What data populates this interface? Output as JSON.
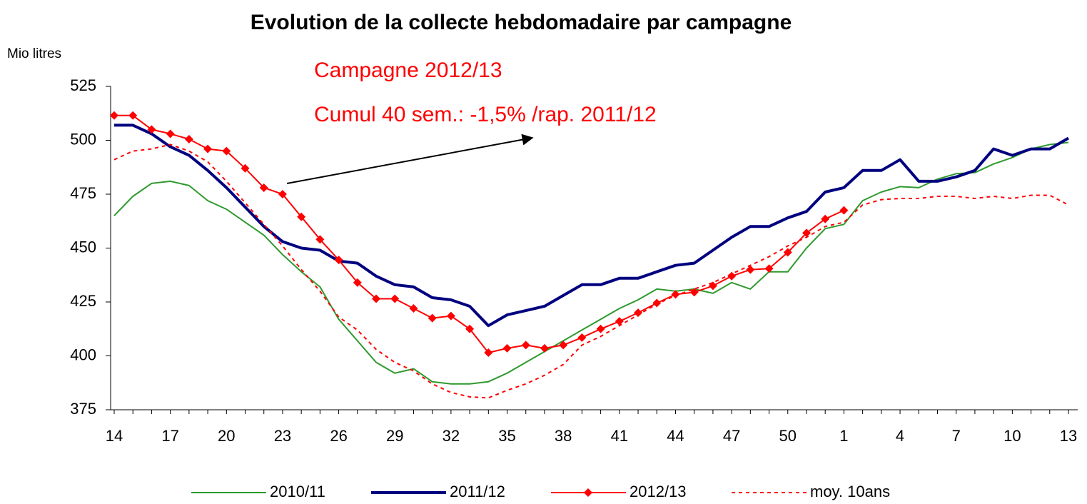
{
  "chart_data": {
    "type": "line",
    "title": "Evolution de la collecte hebdomadaire par campagne",
    "y_axis_label": "Mio litres",
    "annotations": [
      "Campagne 2012/13",
      "Cumul 40 sem.: -1,5% /rap. 2011/12"
    ],
    "categories": [
      14,
      null,
      null,
      17,
      null,
      null,
      20,
      null,
      null,
      23,
      null,
      null,
      26,
      null,
      null,
      29,
      null,
      null,
      32,
      null,
      null,
      35,
      null,
      null,
      38,
      null,
      null,
      41,
      null,
      null,
      44,
      null,
      null,
      47,
      null,
      null,
      50,
      null,
      null,
      1,
      null,
      null,
      4,
      null,
      null,
      7,
      null,
      null,
      10,
      null,
      null,
      13
    ],
    "ylim": [
      375,
      525
    ],
    "yticks": [
      375,
      400,
      425,
      450,
      475,
      500,
      525
    ],
    "legend": "bottom",
    "series": [
      {
        "name": "2010/11",
        "color": "#2e9a2e",
        "line_style": "solid",
        "linewidth": 2,
        "marker": "none",
        "values": [
          465,
          474,
          480,
          481,
          479,
          472,
          468,
          462,
          456,
          447,
          439,
          432,
          417,
          407,
          397,
          392,
          394,
          388,
          387,
          387,
          388,
          392,
          397,
          402,
          407,
          412,
          417,
          422,
          426,
          431,
          430,
          431,
          429,
          434,
          431,
          439,
          439,
          450,
          459,
          461,
          472,
          476,
          478.5,
          478,
          482,
          484.5,
          485,
          489,
          492,
          496,
          498,
          499
        ]
      },
      {
        "name": "2011/12",
        "color": "#00007f",
        "line_style": "solid",
        "linewidth": 4,
        "marker": "none",
        "values": [
          507,
          507,
          503,
          497,
          493,
          486,
          478,
          469,
          460,
          453,
          450,
          449,
          444,
          443,
          437,
          433,
          432,
          427,
          426,
          423,
          414,
          419,
          421,
          423,
          428,
          433,
          433,
          436,
          436,
          439,
          442,
          443,
          449,
          455,
          460,
          460,
          464,
          467,
          476,
          478,
          486,
          486,
          491,
          481,
          481,
          483,
          486,
          496,
          493,
          496,
          496,
          501
        ]
      },
      {
        "name": "2012/13",
        "color": "#ff0000",
        "line_style": "solid",
        "linewidth": 2,
        "marker": "diamond",
        "values": [
          511.5,
          511.5,
          505,
          503,
          500.5,
          496,
          495,
          487,
          478,
          475,
          464.5,
          454,
          444.5,
          434,
          426.5,
          426.5,
          422,
          417.5,
          418.5,
          412.5,
          401.5,
          403.5,
          405,
          403.5,
          405,
          408.5,
          412.5,
          416,
          420,
          424.5,
          428.5,
          429.5,
          432.5,
          437,
          440,
          440.5,
          448,
          457,
          463.5,
          467.5,
          null,
          null,
          null,
          null,
          null,
          null,
          null,
          null,
          null,
          null,
          null,
          null
        ]
      },
      {
        "name": "moy. 10ans",
        "color": "#ff0000",
        "line_style": "dotted",
        "linewidth": 2,
        "marker": "none",
        "values": [
          491,
          495,
          496,
          498,
          495,
          490,
          481,
          471,
          461,
          451,
          440,
          430,
          418,
          412,
          403,
          397,
          393,
          387,
          383,
          381,
          380.5,
          384,
          387,
          391,
          396,
          405,
          409,
          414,
          419,
          424,
          428,
          431,
          434,
          438,
          442,
          446,
          451,
          455,
          460,
          462,
          470,
          472.5,
          473,
          473,
          474,
          474,
          473,
          474,
          473,
          474.5,
          474.5,
          470
        ]
      }
    ]
  }
}
